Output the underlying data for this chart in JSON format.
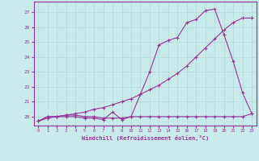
{
  "xlabel": "Windchill (Refroidissement éolien,°C)",
  "xlim": [
    -0.5,
    23.5
  ],
  "ylim": [
    19.4,
    27.7
  ],
  "yticks": [
    20,
    21,
    22,
    23,
    24,
    25,
    26,
    27
  ],
  "xticks": [
    0,
    1,
    2,
    3,
    4,
    5,
    6,
    7,
    8,
    9,
    10,
    11,
    12,
    13,
    14,
    15,
    16,
    17,
    18,
    19,
    20,
    21,
    22,
    23
  ],
  "bg_color": "#c8eaea",
  "grid_color": "#b0d8d8",
  "line_color": "#993399",
  "line1_x": [
    0,
    1,
    2,
    3,
    4,
    5,
    6,
    7,
    8,
    9,
    10,
    11,
    12,
    13,
    14,
    15,
    16,
    17,
    18,
    19,
    20,
    21,
    22,
    23
  ],
  "line1_y": [
    19.7,
    20.0,
    20.0,
    20.0,
    20.0,
    19.9,
    19.9,
    19.8,
    20.3,
    19.8,
    20.0,
    21.5,
    23.0,
    24.8,
    25.1,
    25.3,
    26.3,
    26.5,
    27.1,
    27.2,
    25.5,
    23.7,
    21.6,
    20.2
  ],
  "line2_x": [
    0,
    1,
    2,
    3,
    4,
    5,
    6,
    7,
    8,
    9,
    10,
    11,
    12,
    13,
    14,
    15,
    16,
    17,
    18,
    19,
    20,
    21,
    22,
    23
  ],
  "line2_y": [
    19.7,
    20.0,
    20.0,
    20.1,
    20.1,
    20.0,
    20.0,
    19.9,
    19.9,
    19.9,
    20.0,
    20.0,
    20.0,
    20.0,
    20.0,
    20.0,
    20.0,
    20.0,
    20.0,
    20.0,
    20.0,
    20.0,
    20.0,
    20.2
  ],
  "line3_x": [
    0,
    1,
    2,
    3,
    4,
    5,
    6,
    7,
    8,
    9,
    10,
    11,
    12,
    13,
    14,
    15,
    16,
    17,
    18,
    19,
    20,
    21,
    22,
    23
  ],
  "line3_y": [
    19.7,
    19.9,
    20.0,
    20.1,
    20.2,
    20.3,
    20.5,
    20.6,
    20.8,
    21.0,
    21.2,
    21.5,
    21.8,
    22.1,
    22.5,
    22.9,
    23.4,
    24.0,
    24.6,
    25.2,
    25.8,
    26.3,
    26.6,
    26.6
  ]
}
